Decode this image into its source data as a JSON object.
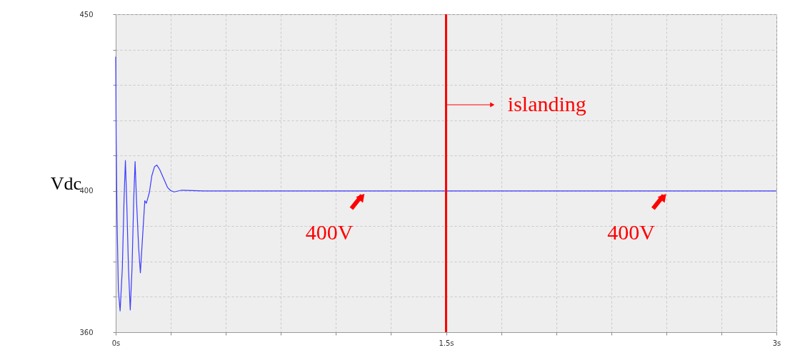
{
  "chart_data": {
    "type": "line",
    "ylabel": "Vdc",
    "x": [
      0,
      0.002,
      0.006,
      0.012,
      0.02,
      0.03,
      0.038,
      0.044,
      0.05,
      0.058,
      0.066,
      0.074,
      0.082,
      0.088,
      0.094,
      0.104,
      0.112,
      0.12,
      0.132,
      0.139,
      0.146,
      0.153,
      0.164,
      0.176,
      0.187,
      0.2,
      0.217,
      0.235,
      0.249,
      0.265,
      0.3,
      0.4,
      0.6,
      0.8,
      1.0,
      1.2,
      1.4,
      1.5,
      1.6,
      1.8,
      2.0,
      2.2,
      2.4,
      2.6,
      2.8,
      3.0
    ],
    "series": [
      {
        "color": "#3b3bff",
        "values": [
          438,
          415,
          392,
          372,
          366,
          378,
          398,
          408.6,
          397,
          378,
          366.3,
          378,
          398,
          408.3,
          398,
          384,
          376.8,
          385,
          397.2,
          396.5,
          398,
          399.6,
          404.3,
          406.8,
          407.3,
          406,
          403.6,
          401,
          400.1,
          399.7,
          400.2,
          400,
          400,
          400,
          400,
          400,
          400,
          400,
          400,
          400,
          400,
          400,
          400,
          400,
          400,
          400
        ]
      }
    ],
    "xlim": [
      0,
      3
    ],
    "ylim": [
      360,
      450
    ],
    "xticks": [
      {
        "value": 0,
        "label": "0s"
      },
      {
        "value": 0.25,
        "label": null
      },
      {
        "value": 0.5,
        "label": null
      },
      {
        "value": 0.75,
        "label": null
      },
      {
        "value": 1,
        "label": null
      },
      {
        "value": 1.25,
        "label": null
      },
      {
        "value": 1.5,
        "label": "1.5s"
      },
      {
        "value": 1.75,
        "label": null
      },
      {
        "value": 2,
        "label": null
      },
      {
        "value": 2.25,
        "label": null
      },
      {
        "value": 2.5,
        "label": null
      },
      {
        "value": 2.75,
        "label": null
      },
      {
        "value": 3,
        "label": "3s"
      }
    ],
    "yticks": [
      360,
      {
        "value": 370,
        "label": null
      },
      {
        "value": 380,
        "label": null
      },
      {
        "value": 390,
        "label": null
      },
      400,
      {
        "value": 410,
        "label": null
      },
      {
        "value": 420,
        "label": null
      },
      {
        "value": 430,
        "label": null
      },
      {
        "value": 440,
        "label": null
      },
      450
    ],
    "grid": true,
    "ref_lines": [
      {
        "axis": "x",
        "value": 1.5,
        "color": "#ff0000",
        "label": "islanding"
      }
    ],
    "annotations": [
      {
        "text": "400V",
        "x": 1.13,
        "y": 399.6
      },
      {
        "text": "400V",
        "x": 2.5,
        "y": 399.6
      }
    ]
  }
}
